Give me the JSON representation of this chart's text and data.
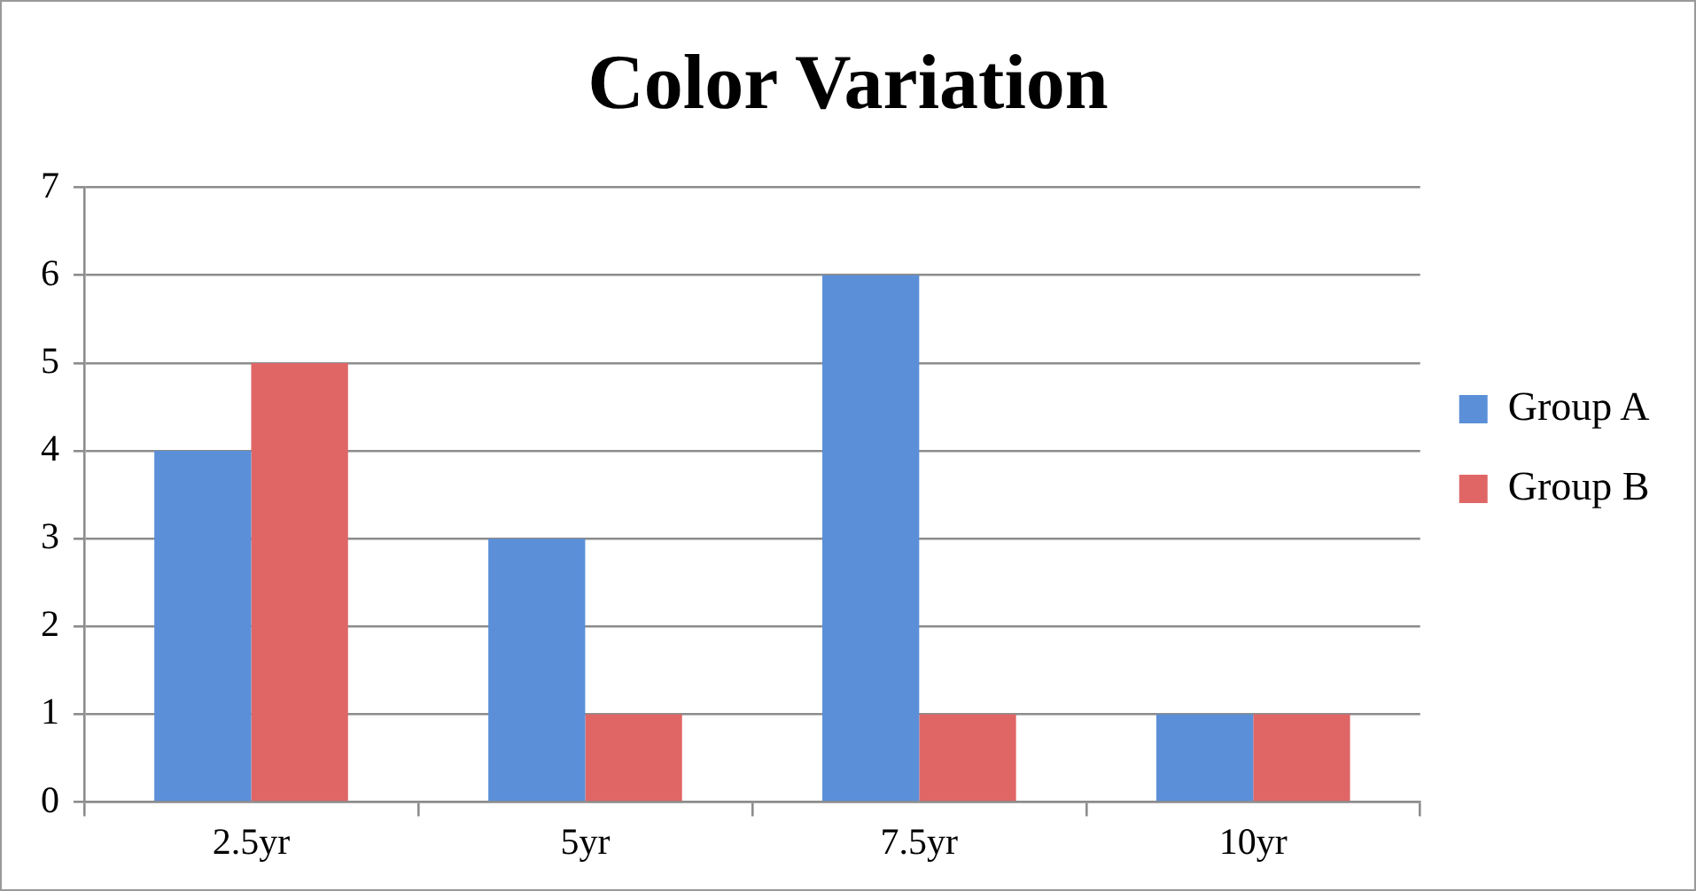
{
  "chart_data": {
    "type": "bar",
    "title": "Color Variation",
    "categories": [
      "2.5yr",
      "5yr",
      "7.5yr",
      "10yr"
    ],
    "series": [
      {
        "name": "Group A",
        "color": "#5b8fd8",
        "values": [
          4,
          3,
          6,
          1
        ]
      },
      {
        "name": "Group B",
        "color": "#e06666",
        "values": [
          5,
          1,
          1,
          1
        ]
      }
    ],
    "ylim": [
      0,
      7
    ],
    "yticks": [
      0,
      1,
      2,
      3,
      4,
      5,
      6,
      7
    ],
    "grid": "y",
    "legend": "right"
  }
}
